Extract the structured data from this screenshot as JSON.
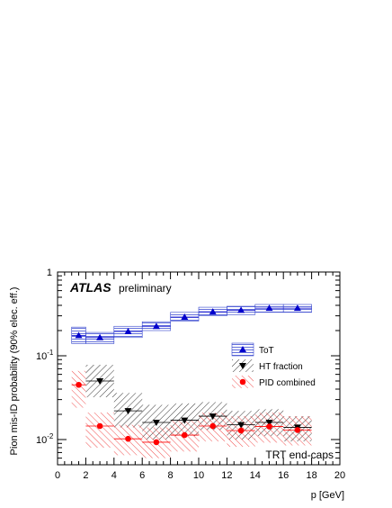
{
  "chart_data": {
    "type": "scatter",
    "ylabel": "Pion mis-ID probability (90% elec. eff.)",
    "xlabel": "p [GeV]",
    "xlim": [
      0,
      20
    ],
    "ylim": [
      0.005,
      1
    ],
    "yscale": "log",
    "x_ticks": [
      "0",
      "2",
      "4",
      "6",
      "8",
      "10",
      "12",
      "14",
      "16",
      "18",
      "20"
    ],
    "y_ticks": [
      "1",
      "10^-1",
      "10^-2"
    ],
    "atlas_label": "ATLAS",
    "atlas_sublabel": "preliminary",
    "region_label": "TRT end-caps",
    "legend_position": "center-right",
    "series": [
      {
        "name": "ToT",
        "color": "#0000cc",
        "marker": "triangle-up",
        "band_hatch": "horizontal",
        "points": [
          {
            "x": 1.5,
            "y": 0.175,
            "xlo": 1.0,
            "xhi": 2.0,
            "ylo": 0.14,
            "yhi": 0.22
          },
          {
            "x": 3.0,
            "y": 0.165,
            "xlo": 2.0,
            "xhi": 4.0,
            "ylo": 0.14,
            "yhi": 0.19
          },
          {
            "x": 5.0,
            "y": 0.195,
            "xlo": 4.0,
            "xhi": 6.0,
            "ylo": 0.165,
            "yhi": 0.225
          },
          {
            "x": 7.0,
            "y": 0.225,
            "xlo": 6.0,
            "xhi": 8.0,
            "ylo": 0.2,
            "yhi": 0.255
          },
          {
            "x": 9.0,
            "y": 0.29,
            "xlo": 8.0,
            "xhi": 10.0,
            "ylo": 0.26,
            "yhi": 0.33
          },
          {
            "x": 11.0,
            "y": 0.335,
            "xlo": 10.0,
            "xhi": 12.0,
            "ylo": 0.3,
            "yhi": 0.38
          },
          {
            "x": 13.0,
            "y": 0.35,
            "xlo": 12.0,
            "xhi": 14.0,
            "ylo": 0.31,
            "yhi": 0.39
          },
          {
            "x": 15.0,
            "y": 0.37,
            "xlo": 14.0,
            "xhi": 16.0,
            "ylo": 0.33,
            "yhi": 0.41
          },
          {
            "x": 17.0,
            "y": 0.37,
            "xlo": 16.0,
            "xhi": 18.0,
            "ylo": 0.33,
            "yhi": 0.41
          }
        ]
      },
      {
        "name": "HT fraction",
        "color": "#000000",
        "marker": "triangle-down",
        "band_hatch": "diagonal-right",
        "points": [
          {
            "x": 3.0,
            "y": 0.05,
            "xlo": 2.0,
            "xhi": 4.0,
            "ylo": 0.032,
            "yhi": 0.078
          },
          {
            "x": 5.0,
            "y": 0.022,
            "xlo": 4.0,
            "xhi": 6.0,
            "ylo": 0.014,
            "yhi": 0.036
          },
          {
            "x": 7.0,
            "y": 0.016,
            "xlo": 6.0,
            "xhi": 8.0,
            "ylo": 0.01,
            "yhi": 0.026
          },
          {
            "x": 9.0,
            "y": 0.017,
            "xlo": 8.0,
            "xhi": 10.0,
            "ylo": 0.011,
            "yhi": 0.027
          },
          {
            "x": 11.0,
            "y": 0.019,
            "xlo": 10.0,
            "xhi": 12.0,
            "ylo": 0.013,
            "yhi": 0.028
          },
          {
            "x": 13.0,
            "y": 0.015,
            "xlo": 12.0,
            "xhi": 14.0,
            "ylo": 0.01,
            "yhi": 0.022
          },
          {
            "x": 15.0,
            "y": 0.016,
            "xlo": 14.0,
            "xhi": 16.0,
            "ylo": 0.011,
            "yhi": 0.023
          },
          {
            "x": 17.0,
            "y": 0.014,
            "xlo": 16.0,
            "xhi": 18.0,
            "ylo": 0.0095,
            "yhi": 0.019
          }
        ]
      },
      {
        "name": "PID combined",
        "color": "#ff0000",
        "marker": "circle",
        "band_hatch": "diagonal-left",
        "points": [
          {
            "x": 1.5,
            "y": 0.045,
            "xlo": 1.0,
            "xhi": 2.0,
            "ylo": 0.024,
            "yhi": 0.066
          },
          {
            "x": 3.0,
            "y": 0.0145,
            "xlo": 2.0,
            "xhi": 4.0,
            "ylo": 0.008,
            "yhi": 0.021
          },
          {
            "x": 5.0,
            "y": 0.0102,
            "xlo": 4.0,
            "xhi": 6.0,
            "ylo": 0.0065,
            "yhi": 0.015
          },
          {
            "x": 7.0,
            "y": 0.0093,
            "xlo": 6.0,
            "xhi": 8.0,
            "ylo": 0.006,
            "yhi": 0.014
          },
          {
            "x": 9.0,
            "y": 0.0113,
            "xlo": 8.0,
            "xhi": 10.0,
            "ylo": 0.0072,
            "yhi": 0.017
          },
          {
            "x": 11.0,
            "y": 0.0145,
            "xlo": 10.0,
            "xhi": 12.0,
            "ylo": 0.0095,
            "yhi": 0.021
          },
          {
            "x": 13.0,
            "y": 0.0128,
            "xlo": 12.0,
            "xhi": 14.0,
            "ylo": 0.0082,
            "yhi": 0.019
          },
          {
            "x": 15.0,
            "y": 0.0143,
            "xlo": 14.0,
            "xhi": 16.0,
            "ylo": 0.0092,
            "yhi": 0.021
          },
          {
            "x": 17.0,
            "y": 0.013,
            "xlo": 16.0,
            "xhi": 18.0,
            "ylo": 0.0085,
            "yhi": 0.019
          }
        ]
      }
    ]
  }
}
